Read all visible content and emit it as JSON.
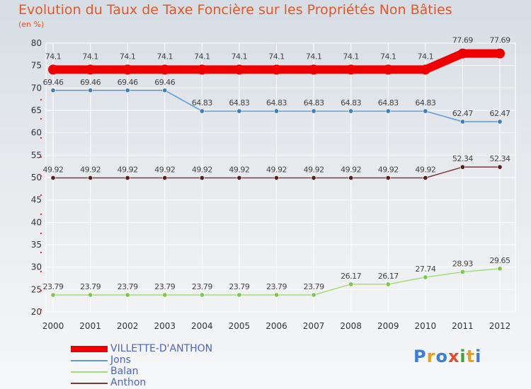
{
  "title": "Evolution du Taux de Taxe Foncière sur les Propriétés Non Bâties",
  "subtitle": "(en %)",
  "logo": {
    "text": "Proxiti",
    "colors": [
      "#3a7fd6",
      "#e8a215",
      "#3a7fd6",
      "#e24b2c",
      "#3aa63a",
      "#e8a215",
      "#3a7fd6"
    ]
  },
  "chart_data": {
    "type": "line",
    "title": "Evolution du Taux de Taxe Foncière sur les Propriétés Non Bâties",
    "ylabel": "(en %)",
    "xlabel": "",
    "ylim": [
      20,
      80
    ],
    "yticks": [
      "20",
      "25",
      "30",
      "35",
      "40",
      "45",
      "50",
      "55",
      "60",
      "65",
      "70",
      "75",
      "80"
    ],
    "categories": [
      "2000",
      "2001",
      "2002",
      "2003",
      "2004",
      "2005",
      "2006",
      "2007",
      "2008",
      "2009",
      "2010",
      "2011",
      "2012"
    ],
    "grid": true,
    "legend": "bottom-left",
    "series": [
      {
        "name": "VILLETTE-D'ANTHON",
        "color": "#ee0000",
        "highlight": true,
        "values": [
          74.1,
          74.1,
          74.1,
          74.1,
          74.1,
          74.1,
          74.1,
          74.1,
          74.1,
          74.1,
          74.1,
          77.69,
          77.69
        ],
        "labels": [
          "74.1",
          "74.1",
          "74.1",
          "74.1",
          "74.1",
          "74.1",
          "74.1",
          "74.1",
          "74.1",
          "74.1",
          "74.1",
          "77.69",
          "77.69"
        ]
      },
      {
        "name": "Jons",
        "color": "#5b9bd5",
        "marker": "#3d7fc0",
        "values": [
          69.46,
          69.46,
          69.46,
          69.46,
          64.83,
          64.83,
          64.83,
          64.83,
          64.83,
          64.83,
          64.83,
          62.47,
          62.47
        ],
        "labels": [
          "69.46",
          "69.46",
          "69.46",
          "69.46",
          "64.83",
          "64.83",
          "64.83",
          "64.83",
          "64.83",
          "64.83",
          "64.83",
          "62.47",
          "62.47"
        ]
      },
      {
        "name": "Balan",
        "color": "#a6dc7a",
        "marker": "#7cc84b",
        "values": [
          23.79,
          23.79,
          23.79,
          23.79,
          23.79,
          23.79,
          23.79,
          23.79,
          26.17,
          26.17,
          27.74,
          28.93,
          29.65
        ],
        "labels": [
          "23.79",
          "23.79",
          "23.79",
          "23.79",
          "23.79",
          "23.79",
          "23.79",
          "23.79",
          "26.17",
          "26.17",
          "27.74",
          "28.93",
          "29.65"
        ]
      },
      {
        "name": "Anthon",
        "color": "#7a3a3a",
        "marker": "#5a1e1e",
        "values": [
          49.92,
          49.92,
          49.92,
          49.92,
          49.92,
          49.92,
          49.92,
          49.92,
          49.92,
          49.92,
          49.92,
          52.34,
          52.34
        ],
        "labels": [
          "49.92",
          "49.92",
          "49.92",
          "49.92",
          "49.92",
          "49.92",
          "49.92",
          "49.92",
          "49.92",
          "49.92",
          "49.92",
          "52.34",
          "52.34"
        ]
      }
    ]
  }
}
